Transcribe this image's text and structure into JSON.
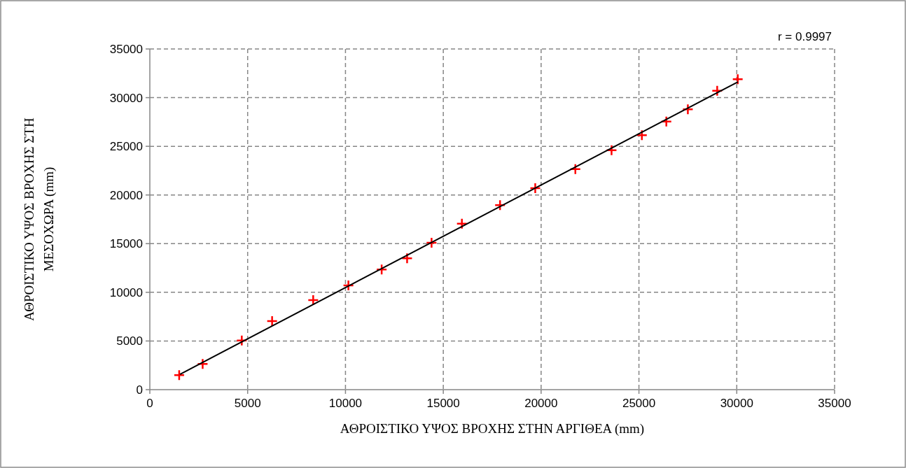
{
  "chart_data": {
    "type": "scatter",
    "xlabel": "ΑΘΡΟΙΣΤΙΚΟ ΥΨΟΣ ΒΡΟΧΗΣ ΣΤΗΝ ΑΡΓΙΘΕΑ (mm)",
    "ylabel": "ΑΘΡΟΙΣΤΙΚΟ ΥΨΟΣ ΒΡΟΧΗΣ ΣΤΗ ΜΕΣΟΧΩΡΑ (mm)",
    "annotations": [
      "r = 0.9997"
    ],
    "xlim": [
      0,
      35000
    ],
    "ylim": [
      0,
      35000
    ],
    "xticks": [
      0,
      5000,
      10000,
      15000,
      20000,
      25000,
      30000,
      35000
    ],
    "yticks": [
      0,
      5000,
      10000,
      15000,
      20000,
      25000,
      30000,
      35000
    ],
    "grid": true,
    "marker": "cross",
    "series": [
      {
        "color": "#ff0000",
        "x": [
          1500,
          2700,
          4700,
          6250,
          8350,
          10150,
          11850,
          13150,
          14400,
          15950,
          17900,
          19700,
          21750,
          23600,
          25150,
          26400,
          27500,
          29000,
          30050
        ],
        "values": [
          1500,
          2650,
          5050,
          7050,
          9200,
          10700,
          12350,
          13500,
          15100,
          17050,
          18950,
          20700,
          22650,
          24600,
          26150,
          27550,
          28800,
          30700,
          31900
        ]
      },
      {
        "type": "line",
        "color": "#000000",
        "marker": "none",
        "x": [
          1540,
          30060
        ],
        "values": [
          1580,
          31620
        ]
      }
    ]
  }
}
